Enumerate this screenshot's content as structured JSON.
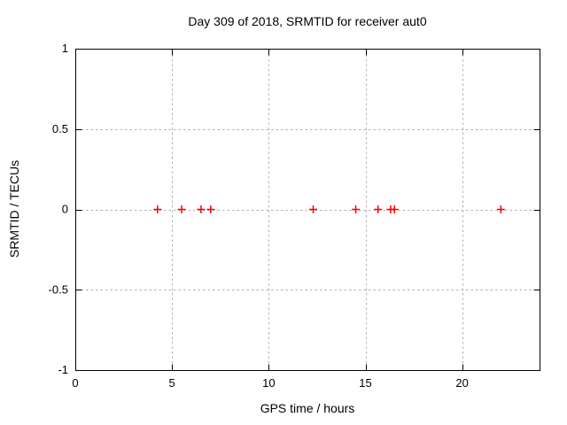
{
  "page": {
    "background": "#ffffff"
  },
  "chart_data": {
    "type": "scatter",
    "title": "Day 309 of 2018, SRMTID for receiver aut0",
    "xlabel": "GPS time / hours",
    "ylabel": "SRMTID / TECUs",
    "xlim": [
      0,
      24
    ],
    "ylim": [
      -1,
      1
    ],
    "xticks": [
      0,
      5,
      10,
      15,
      20
    ],
    "xtick_labels": [
      "0",
      "5",
      "10",
      "15",
      "20"
    ],
    "yticks": [
      1,
      0.5,
      0,
      -0.5,
      -1
    ],
    "ytick_labels": [
      "1",
      "0.5",
      "0",
      "-0.5",
      "-1"
    ],
    "grid": true,
    "legend_position": "none",
    "marker": "plus",
    "series": [
      {
        "name": "SRMTID",
        "x": [
          4.25,
          5.5,
          6.5,
          7.0,
          12.3,
          14.5,
          15.65,
          16.3,
          16.5,
          22.0
        ],
        "y": [
          0,
          0,
          0,
          0,
          0,
          0,
          0,
          0,
          0,
          0
        ]
      }
    ]
  },
  "colors": {
    "axis": "#000000",
    "grid": "#b0b0b0",
    "text": "#000000",
    "marker": "#ff0000"
  }
}
